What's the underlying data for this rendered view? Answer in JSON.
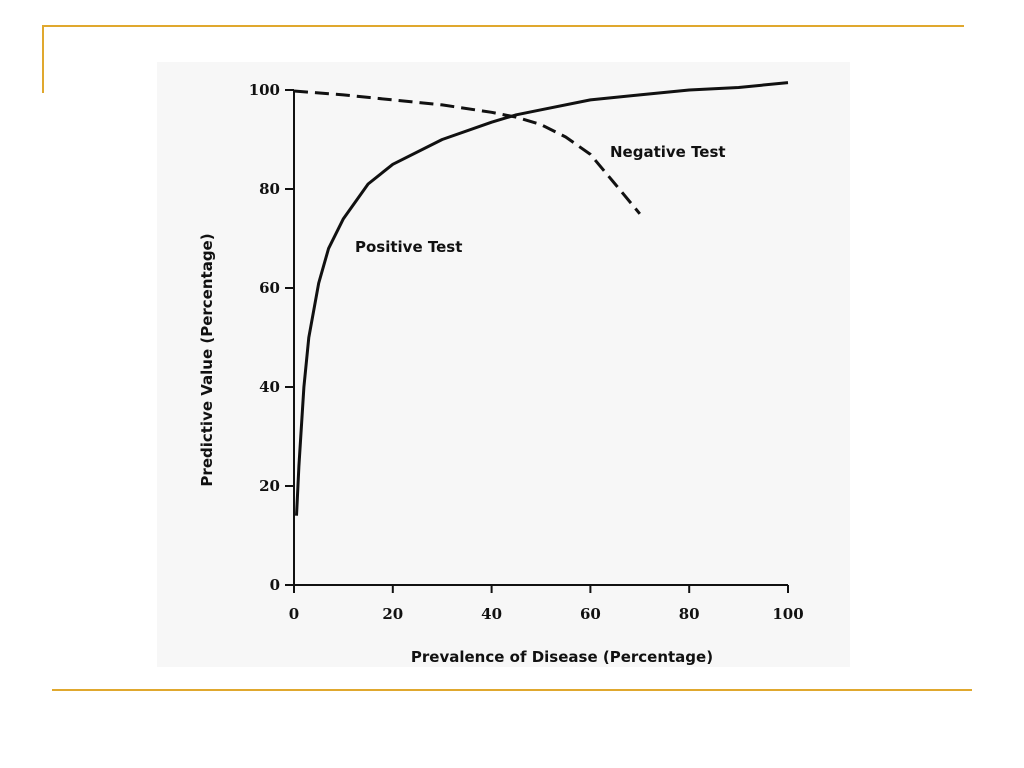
{
  "slide": {
    "accent_color": "#E0A82E",
    "background_color": "#ffffff",
    "figure_background": "#f7f7f7"
  },
  "chart_data": {
    "type": "line",
    "title": "",
    "xlabel": "Prevalence of Disease (Percentage)",
    "ylabel": "Predictive Value (Percentage)",
    "xlim": [
      0,
      100
    ],
    "ylim": [
      0,
      100
    ],
    "x_ticks": [
      "0",
      "20",
      "40",
      "60",
      "80",
      "100"
    ],
    "y_ticks": [
      "0",
      "20",
      "40",
      "60",
      "80",
      "100"
    ],
    "grid": false,
    "legend": "none",
    "series": [
      {
        "name": "Positive Test",
        "style": "solid",
        "color": "#111111",
        "x": [
          0.5,
          1,
          2,
          3,
          5,
          7,
          10,
          15,
          20,
          30,
          40,
          45,
          50,
          60,
          70,
          80,
          90,
          100
        ],
        "y": [
          14,
          24,
          40,
          50,
          61,
          68,
          74,
          81,
          85,
          90,
          93.5,
          95,
          96,
          98,
          99,
          100,
          100.5,
          101.5
        ]
      },
      {
        "name": "Negative Test",
        "style": "dashed",
        "color": "#111111",
        "x": [
          0,
          10,
          20,
          30,
          40,
          45,
          50,
          55,
          60,
          65,
          70
        ],
        "y": [
          99.8,
          99,
          98,
          97,
          95.5,
          94.5,
          93,
          90.5,
          87,
          81,
          75
        ]
      }
    ]
  }
}
